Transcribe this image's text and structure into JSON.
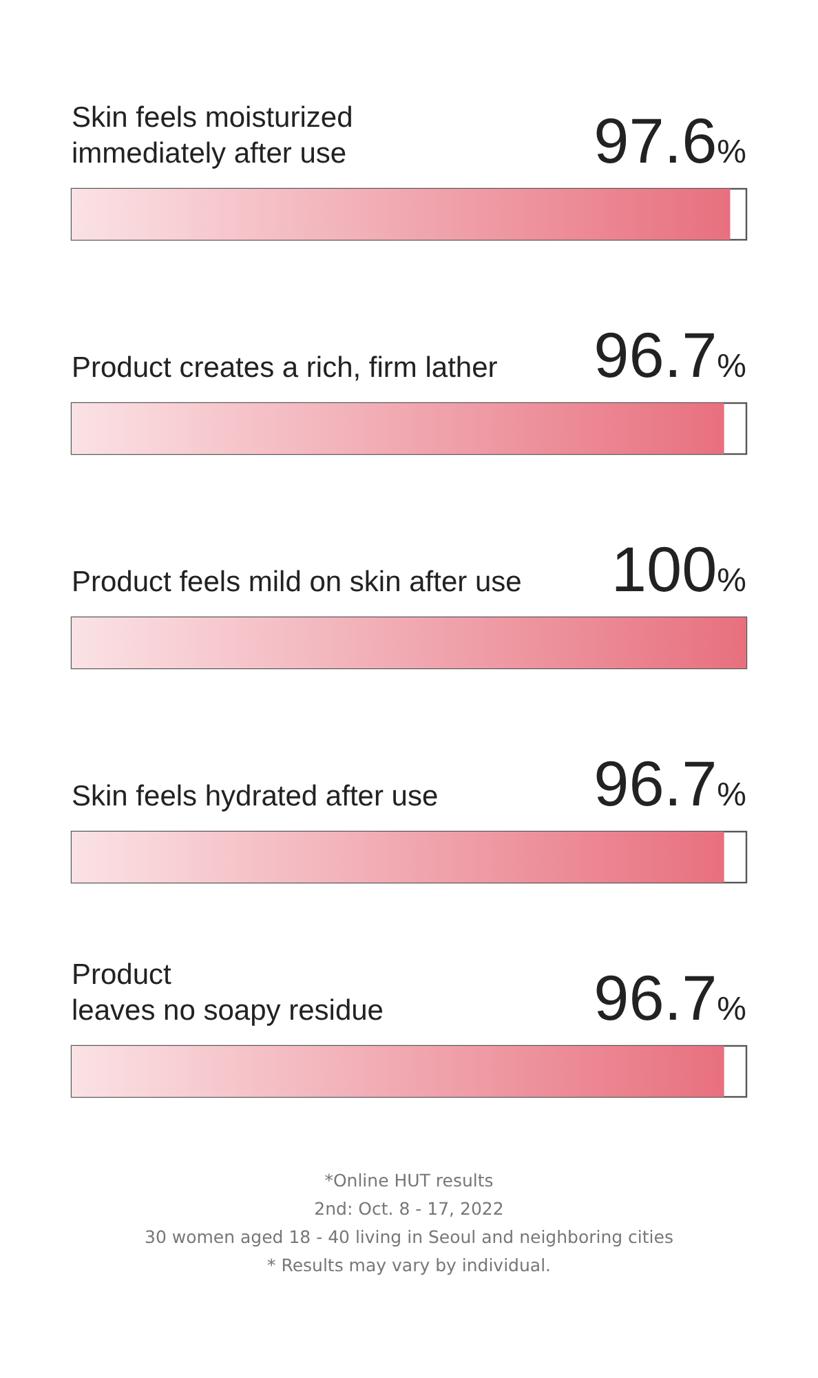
{
  "chart_data": {
    "type": "bar",
    "orientation": "horizontal",
    "categories": [
      "Skin feels moisturized\nimmediately after use",
      "Product creates a rich, firm lather",
      "Product feels mild on skin after use",
      "Skin feels hydrated after use",
      "Product\nleaves no soapy residue"
    ],
    "values": [
      97.6,
      96.7,
      100,
      96.7,
      96.7
    ],
    "value_labels": [
      "97.6%",
      "96.7%",
      "100%",
      "96.7%",
      "96.7%"
    ],
    "color": "#e8707e",
    "xlim": [
      0,
      100
    ],
    "annotations": [
      "*Online HUT results",
      "2nd: Oct. 8 - 17, 2022",
      "30 women aged 18 - 40 living in Seoul and neighboring cities",
      "* Results may vary by individual."
    ]
  }
}
